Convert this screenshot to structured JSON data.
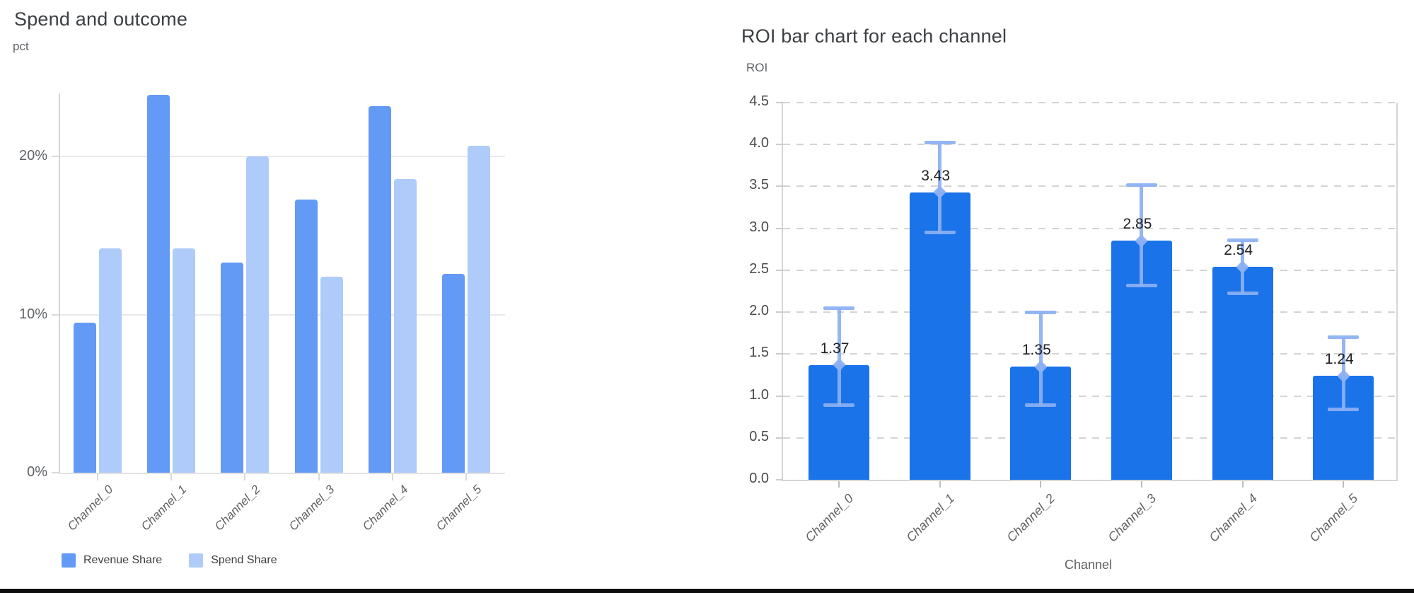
{
  "window": {
    "bottom_edge_color": "#0d0d0d",
    "background": "#ffffff"
  },
  "chart_data": [
    {
      "type": "bar",
      "title": "Spend and outcome",
      "ylabel": "pct",
      "xlabel": "",
      "categories": [
        "Channel_0",
        "Channel_1",
        "Channel_2",
        "Channel_3",
        "Channel_4",
        "Channel_5"
      ],
      "series": [
        {
          "name": "Revenue Share",
          "color": "#639af5",
          "values": [
            9.5,
            23.9,
            13.3,
            17.3,
            23.2,
            12.6
          ]
        },
        {
          "name": "Spend Share",
          "color": "#aecbfa",
          "values": [
            14.2,
            14.2,
            20.0,
            12.4,
            18.6,
            20.7
          ]
        }
      ],
      "ylim": [
        0,
        24
      ],
      "yticks": [
        {
          "value": 0,
          "label": "0%"
        },
        {
          "value": 10,
          "label": "10%"
        },
        {
          "value": 20,
          "label": "20%"
        }
      ],
      "grid": "solid-horizontal",
      "legend_position": "bottom-left"
    },
    {
      "type": "bar",
      "title": "ROI bar chart for each channel",
      "ylabel": "ROI",
      "xlabel": "Channel",
      "categories": [
        "Channel_0",
        "Channel_1",
        "Channel_2",
        "Channel_3",
        "Channel_4",
        "Channel_5"
      ],
      "series": [
        {
          "name": "ROI",
          "color": "#1a73e8",
          "values": [
            1.37,
            3.43,
            1.35,
            2.85,
            2.54,
            1.24
          ],
          "value_labels": [
            "1.37",
            "3.43",
            "1.35",
            "2.85",
            "2.54",
            "1.24"
          ],
          "error_low": [
            0.89,
            2.95,
            0.89,
            2.31,
            2.22,
            0.84
          ],
          "error_high": [
            2.04,
            4.02,
            1.99,
            3.51,
            2.85,
            1.7
          ],
          "error_color": "#8cb0f3",
          "marker": "diamond",
          "label_color": "#202124"
        }
      ],
      "ylim": [
        0,
        4.5
      ],
      "yticks": [
        {
          "value": 0.0,
          "label": "0.0"
        },
        {
          "value": 0.5,
          "label": "0.5"
        },
        {
          "value": 1.0,
          "label": "1.0"
        },
        {
          "value": 1.5,
          "label": "1.5"
        },
        {
          "value": 2.0,
          "label": "2.0"
        },
        {
          "value": 2.5,
          "label": "2.5"
        },
        {
          "value": 3.0,
          "label": "3.0"
        },
        {
          "value": 3.5,
          "label": "3.5"
        },
        {
          "value": 4.0,
          "label": "4.0"
        },
        {
          "value": 4.5,
          "label": "4.5"
        }
      ],
      "grid": "dashed-horizontal",
      "legend_position": "none"
    }
  ]
}
